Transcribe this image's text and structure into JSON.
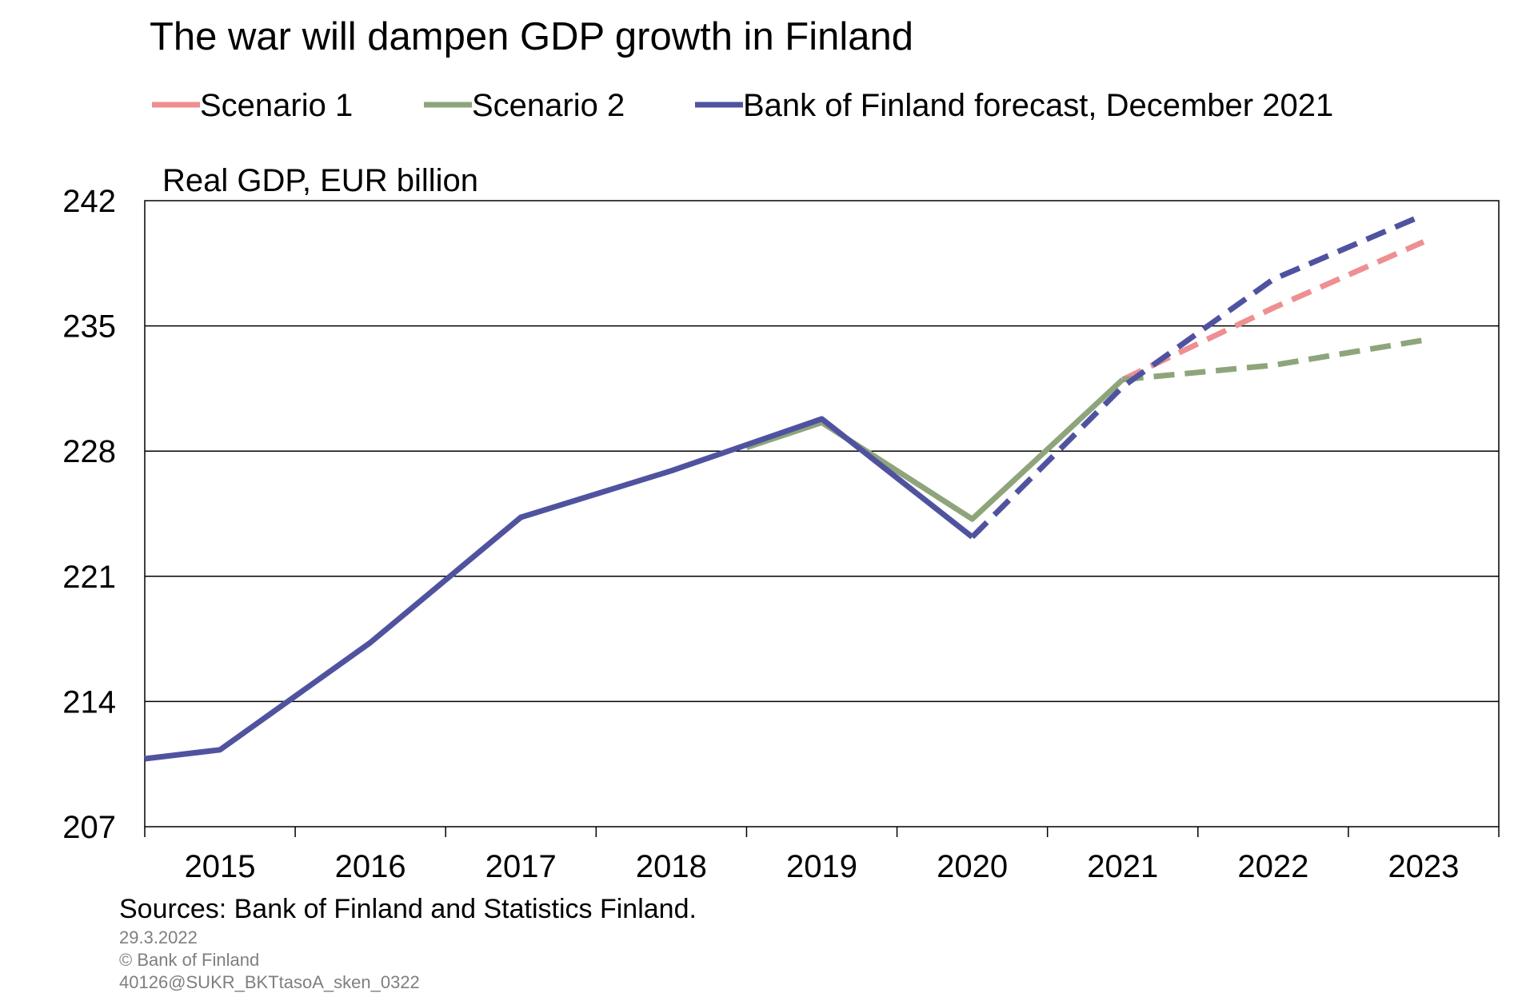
{
  "chart_data": {
    "type": "line",
    "title": "The war will dampen GDP growth in Finland",
    "ylabel": "Real GDP, EUR billion",
    "xlabel": "",
    "categories": [
      "2015",
      "2016",
      "2017",
      "2018",
      "2019",
      "2020",
      "2021",
      "2022",
      "2023"
    ],
    "x_start": 2014.5,
    "x_end": 2023.5,
    "ylim": [
      207,
      242
    ],
    "yticks": [
      242,
      235,
      228,
      221,
      214,
      207
    ],
    "grid": true,
    "legend_position": "top",
    "series": [
      {
        "name": "Scenario 1",
        "color": "#ee8f92",
        "solid": [],
        "dashed": [
          [
            2021.0,
            232.0
          ],
          [
            2022.0,
            236.0
          ],
          [
            2023.0,
            239.7
          ]
        ]
      },
      {
        "name": "Scenario 2",
        "color": "#8ea57b",
        "solid": [
          [
            2018.5,
            228.2
          ],
          [
            2019.0,
            229.6
          ],
          [
            2020.0,
            224.2
          ],
          [
            2021.0,
            232.0
          ]
        ],
        "dashed": [
          [
            2021.0,
            232.0
          ],
          [
            2022.0,
            232.8
          ],
          [
            2023.0,
            234.2
          ]
        ]
      },
      {
        "name": "Bank of Finland forecast, December 2021",
        "color": "#4f539f",
        "solid": [
          [
            2014.5,
            210.8
          ],
          [
            2015.0,
            211.3
          ],
          [
            2016.0,
            217.3
          ],
          [
            2017.0,
            224.3
          ],
          [
            2018.0,
            226.9
          ],
          [
            2019.0,
            229.8
          ],
          [
            2020.0,
            223.2
          ]
        ],
        "dashed": [
          [
            2020.0,
            223.2
          ],
          [
            2021.0,
            231.6
          ],
          [
            2022.0,
            237.6
          ],
          [
            2023.0,
            241.2
          ]
        ]
      }
    ],
    "sources": "Sources: Bank of Finland and Statistics Finland.",
    "date": "29.3.2022",
    "copyright": "© Bank of Finland",
    "code": "40126@SUKR_BKTtasoA_sken_0322"
  }
}
